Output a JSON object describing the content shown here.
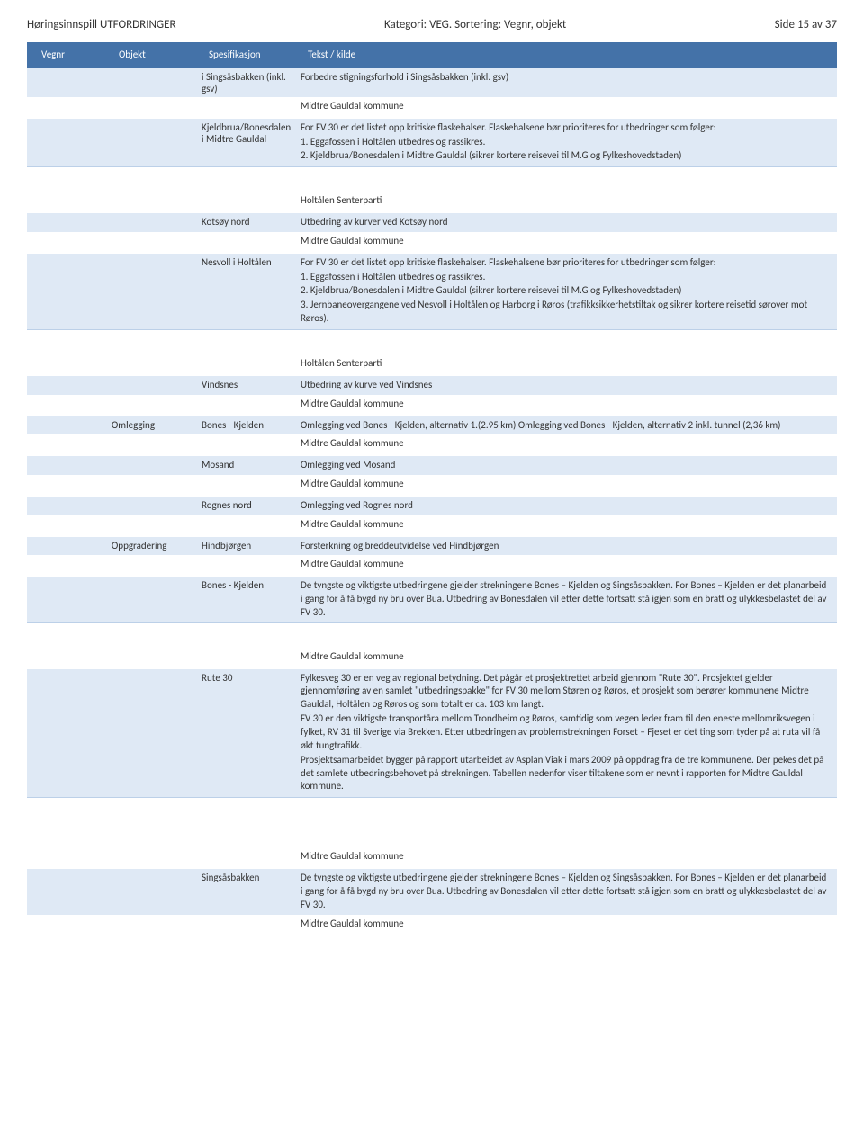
{
  "header": {
    "left": "Høringsinnspill UTFORDRINGER",
    "mid": "Kategori: VEG.  Sortering: Vegnr, objekt",
    "right": "Side 15 av 37"
  },
  "cols": {
    "c1": "Vegnr",
    "c2": "Objekt",
    "c3": "Spesifikasjon",
    "c4": "Tekst / kilde"
  },
  "r1": {
    "spec": "i Singsåsbakken (inkl. gsv)",
    "text": "Forbedre stigningsforhold i Singsåsbakken (inkl. gsv)",
    "src": "Midtre Gauldal kommune"
  },
  "r2": {
    "spec": "Kjeldbrua/Bonesdalen i Midtre Gauldal",
    "l1": "For FV 30 er det listet opp kritiske flaskehalser. Flaskehalsene bør prioriteres for utbedringer som følger:",
    "l2": "1. Eggafossen i Holtålen utbedres og rassikres.",
    "l3": "2. Kjeldbrua/Bonesdalen i Midtre Gauldal (sikrer kortere reisevei til M.G og Fylkeshovedstaden)",
    "src": "Holtålen Senterparti"
  },
  "r3": {
    "spec": "Kotsøy nord",
    "text": "Utbedring av kurver ved Kotsøy nord",
    "src": "Midtre Gauldal kommune"
  },
  "r4": {
    "spec": "Nesvoll i Holtålen",
    "l1": "For FV 30 er det listet opp kritiske flaskehalser. Flaskehalsene bør prioriteres for utbedringer som følger:",
    "l2": "1. Eggafossen i Holtålen utbedres og rassikres.",
    "l3": "2. Kjeldbrua/Bonesdalen i Midtre Gauldal (sikrer kortere reisevei til M.G og Fylkeshovedstaden)",
    "l4": "3. Jernbaneovergangene ved Nesvoll i Holtålen og Harborg i Røros (trafikksikkerhetstiltak og sikrer kortere reisetid sørover mot Røros).",
    "src": "Holtålen Senterparti"
  },
  "r5": {
    "spec": "Vindsnes",
    "text": "Utbedring av kurve ved Vindsnes",
    "src": "Midtre Gauldal kommune"
  },
  "r6": {
    "obj": "Omlegging",
    "spec": "Bones - Kjelden",
    "text": "Omlegging ved Bones - Kjelden, alternativ 1.(2.95 km) Omlegging ved Bones - Kjelden, alternativ 2 inkl. tunnel (2,36 km)",
    "src": "Midtre Gauldal kommune"
  },
  "r7": {
    "spec": "Mosand",
    "text": "Omlegging ved Mosand",
    "src": "Midtre Gauldal kommune"
  },
  "r8": {
    "spec": "Rognes nord",
    "text": "Omlegging ved Rognes nord",
    "src": "Midtre Gauldal kommune"
  },
  "r9": {
    "obj": "Oppgradering",
    "spec": "Hindbjørgen",
    "text": "Forsterkning og breddeutvidelse ved Hindbjørgen",
    "src": "Midtre Gauldal kommune"
  },
  "r10": {
    "spec": "Bones - Kjelden",
    "text": "De tyngste og viktigste utbedringene gjelder strekningene Bones – Kjelden og Singsåsbakken. For Bones – Kjelden er det planarbeid i gang for å få bygd ny bru over Bua. Utbedring av Bonesdalen vil etter dette fortsatt stå igjen som en bratt og ulykkesbelastet del av FV 30.",
    "src": "Midtre Gauldal kommune"
  },
  "r11": {
    "spec": "Rute 30",
    "p1": "Fylkesveg 30 er en veg av regional betydning. Det pågår et prosjektrettet arbeid gjennom \"Rute 30\". Prosjektet gjelder gjennomføring av en samlet \"utbedringspakke\" for FV 30 mellom Støren og Røros, et prosjekt som berører kommunene Midtre Gauldal, Holtålen og Røros og som totalt er ca. 103 km langt.",
    "p2": "FV 30 er den viktigste transportåra mellom Trondheim og Røros, samtidig som vegen leder fram til den eneste mellomriksvegen i fylket, RV 31 til Sverige via Brekken. Etter utbedringen av problemstrekningen Forset – Fjeset er det ting som tyder på at ruta vil få økt tungtrafikk.",
    "p3": "Prosjektsamarbeidet bygger på rapport utarbeidet av Asplan Viak i mars 2009 på oppdrag fra de tre kommunene. Der pekes det på det samlete utbedringsbehovet på strekningen. Tabellen nedenfor viser tiltakene som er nevnt i rapporten for Midtre Gauldal kommune.",
    "src": "Midtre Gauldal kommune"
  },
  "r12": {
    "spec": "Singsåsbakken",
    "text": "De tyngste og viktigste utbedringene gjelder strekningene Bones – Kjelden og Singsåsbakken. For Bones – Kjelden er det planarbeid i gang for å få bygd ny bru over Bua. Utbedring av Bonesdalen vil etter dette fortsatt stå igjen som en bratt og ulykkesbelastet del av FV 30.",
    "src": "Midtre Gauldal kommune"
  }
}
